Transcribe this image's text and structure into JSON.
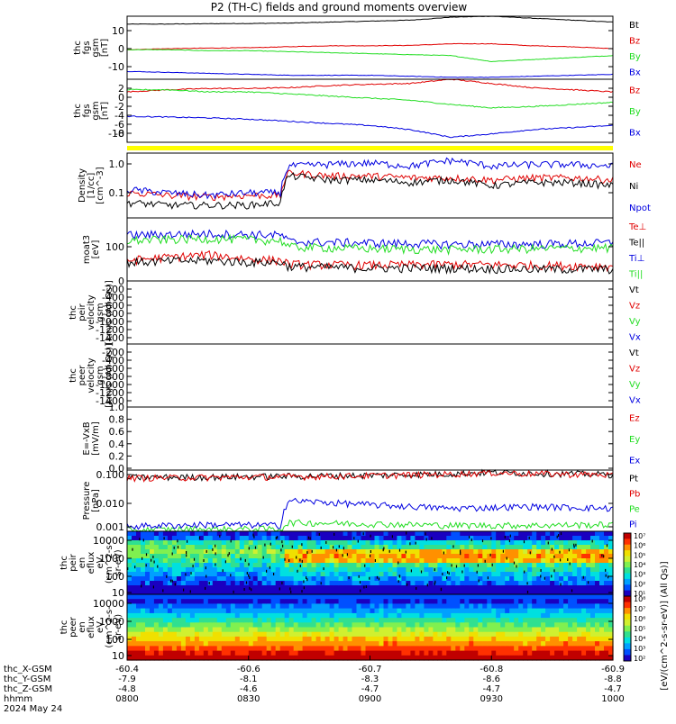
{
  "title": "P2 (TH-C) fields and ground moments overview",
  "colors": {
    "black": "#000000",
    "red": "#e00000",
    "green": "#22dd22",
    "blue": "#0000e0",
    "yellow": "#ffff00"
  },
  "panels": [
    {
      "id": "fgs-bt",
      "ylabel": [
        "thc",
        "fgs",
        "gsm",
        "[nT]"
      ],
      "yticks": [
        "10",
        "0",
        "-10"
      ],
      "legend": [
        {
          "label": "Bt",
          "color": "#000000"
        },
        {
          "label": "Bz",
          "color": "#e00000"
        },
        {
          "label": "By",
          "color": "#22dd22"
        },
        {
          "label": "Bx",
          "color": "#0000e0"
        }
      ]
    },
    {
      "id": "fgs-bzbybx",
      "ylabel": [
        "thc",
        "fgs",
        "gsm",
        "[nT]"
      ],
      "yticks": [
        "2",
        "0",
        "-2",
        "-4",
        "-6",
        "-8",
        "-10"
      ],
      "legend": [
        {
          "label": "Bz",
          "color": "#e00000"
        },
        {
          "label": "By",
          "color": "#22dd22"
        },
        {
          "label": "Bx",
          "color": "#0000e0"
        }
      ]
    },
    {
      "id": "density",
      "ylabel": [
        "Density",
        "[1/cc]",
        "[cm^-3]"
      ],
      "yticks": [
        "1.0",
        "0.1"
      ],
      "legend": [
        {
          "label": "Ne",
          "color": "#e00000"
        },
        {
          "label": "Ni",
          "color": "#000000"
        },
        {
          "label": "Npot",
          "color": "#0000e0"
        }
      ]
    },
    {
      "id": "temperature",
      "ylabel": [
        "moat3",
        "[eV]"
      ],
      "yticks": [
        "100"
      ],
      "legend": [
        {
          "label": "Te⊥",
          "color": "#e00000"
        },
        {
          "label": "Te||",
          "color": "#000000"
        },
        {
          "label": "Ti⊥",
          "color": "#0000e0"
        },
        {
          "label": "Ti||",
          "color": "#22dd22"
        }
      ]
    },
    {
      "id": "peir-velocity",
      "ylabel": [
        "thc",
        "peir",
        "velocity",
        "gsm",
        "[km/s (All Qs)]"
      ],
      "yticks": [
        "0",
        "-200",
        "-400",
        "-600",
        "-800",
        "-1000",
        "-1200",
        "-1400"
      ],
      "legend": [
        {
          "label": "Vt",
          "color": "#000000"
        },
        {
          "label": "Vz",
          "color": "#e00000"
        },
        {
          "label": "Vy",
          "color": "#22dd22"
        },
        {
          "label": "Vx",
          "color": "#0000e0"
        }
      ]
    },
    {
      "id": "peer-velocity",
      "ylabel": [
        "thc",
        "peer",
        "velocity",
        "gsm",
        "[km/s (All Qs)]"
      ],
      "yticks": [
        "-200",
        "-400",
        "-600",
        "-800",
        "-1000",
        "-1200",
        "-1400"
      ],
      "legend": [
        {
          "label": "Vt",
          "color": "#000000"
        },
        {
          "label": "Vz",
          "color": "#e00000"
        },
        {
          "label": "Vy",
          "color": "#22dd22"
        },
        {
          "label": "Vx",
          "color": "#0000e0"
        }
      ]
    },
    {
      "id": "efield",
      "ylabel": [
        "E=-VxB",
        "[mV/m]"
      ],
      "yticks": [
        "1.0",
        "0.8",
        "0.6",
        "0.4",
        "0.2",
        "0.0"
      ],
      "legend": [
        {
          "label": "Ez",
          "color": "#e00000"
        },
        {
          "label": "Ey",
          "color": "#22dd22"
        },
        {
          "label": "Ex",
          "color": "#0000e0"
        }
      ]
    },
    {
      "id": "pressure",
      "ylabel": [
        "Pressure",
        "[nPa]"
      ],
      "yticks": [
        "0.100",
        "0.010",
        "0.001"
      ],
      "legend": [
        {
          "label": "Pt",
          "color": "#000000"
        },
        {
          "label": "Pb",
          "color": "#e00000"
        },
        {
          "label": "Pe",
          "color": "#22dd22"
        },
        {
          "label": "Pi",
          "color": "#0000e0"
        }
      ]
    },
    {
      "id": "peir-spectrogram",
      "ylabel": [
        "thc",
        "peir",
        "en",
        "eflux",
        "eV",
        "(cm^2-s-",
        "sr-eV)"
      ],
      "yticks": [
        "10000",
        "1000",
        "100",
        "10"
      ],
      "legend": []
    },
    {
      "id": "peer-spectrogram",
      "ylabel": [
        "thc",
        "peer",
        "en",
        "eflux",
        "eV",
        "(cm^2-s-",
        "sr-eV)"
      ],
      "yticks": [
        "10000",
        "1000",
        "100",
        "10"
      ],
      "legend": []
    }
  ],
  "colorbar": {
    "label": "[eV/(cm^2-s-sr-eV)] (All Qs)]",
    "ticks_top": [
      "10⁷",
      "10⁶",
      "10⁵",
      "10⁴",
      "10³",
      "10²",
      "10¹"
    ],
    "ticks_bottom": [
      "10⁸",
      "10⁷",
      "10⁶",
      "10⁵",
      "10⁴",
      "10³",
      "10²"
    ]
  },
  "time_axis": {
    "rows": [
      {
        "label": "thc_X-GSM",
        "values": [
          "-60.4",
          "-60.6",
          "-60.7",
          "-60.8",
          "-60.9"
        ]
      },
      {
        "label": "thc_Y-GSM",
        "values": [
          "-7.9",
          "-8.1",
          "-8.3",
          "-8.6",
          "-8.8"
        ]
      },
      {
        "label": "thc_Z-GSM",
        "values": [
          "-4.8",
          "-4.6",
          "-4.7",
          "-4.7",
          "-4.7"
        ]
      },
      {
        "label": "hhmm",
        "values": [
          "0800",
          "0830",
          "0900",
          "0930",
          "1000"
        ]
      }
    ],
    "date": "2024 May 24"
  },
  "chart_data": [
    {
      "type": "line",
      "title": "P2 (TH-C) fields and ground moments overview",
      "ylabel": "thc fgs gsm [nT]",
      "x": [
        "0800",
        "0830",
        "0900",
        "0930",
        "1000"
      ],
      "ylim": [
        -15,
        17
      ],
      "series": [
        {
          "name": "Bt",
          "x": [
            0,
            10,
            20,
            30,
            40,
            50,
            60,
            70,
            80,
            90,
            100,
            110,
            120
          ],
          "values": [
            13,
            13,
            13.2,
            13.3,
            13.5,
            14,
            14.5,
            15,
            16.5,
            17,
            16,
            15,
            14
          ]
        },
        {
          "name": "Bz",
          "x": [
            0,
            10,
            20,
            30,
            40,
            50,
            60,
            70,
            80,
            90,
            100,
            110,
            120
          ],
          "values": [
            0,
            0.5,
            0.8,
            1,
            1.5,
            2,
            2,
            2.2,
            3,
            3,
            2,
            1.5,
            0.5
          ]
        },
        {
          "name": "By",
          "x": [
            0,
            10,
            20,
            30,
            40,
            50,
            60,
            70,
            80,
            90,
            100,
            110,
            120
          ],
          "values": [
            0,
            0,
            -0.5,
            -0.5,
            -1,
            -1.5,
            -2,
            -2.5,
            -3,
            -6,
            -5,
            -4,
            -3
          ]
        },
        {
          "name": "Bx",
          "x": [
            0,
            10,
            20,
            30,
            40,
            50,
            60,
            70,
            80,
            90,
            100,
            110,
            120
          ],
          "values": [
            -11,
            -11.5,
            -12,
            -12.5,
            -13,
            -13,
            -13,
            -13.5,
            -14,
            -14,
            -13.5,
            -13,
            -12.5
          ]
        }
      ]
    },
    {
      "type": "line",
      "ylabel": "thc fgs gsm [nT]",
      "ylim": [
        -12,
        3
      ],
      "series": [
        {
          "name": "Bz",
          "x": [
            0,
            10,
            20,
            30,
            40,
            50,
            60,
            70,
            80,
            90,
            100,
            110,
            120
          ],
          "values": [
            0,
            0.5,
            0.8,
            0.8,
            1,
            1.5,
            1.8,
            2,
            3,
            2,
            1,
            0.5,
            0
          ]
        },
        {
          "name": "By",
          "x": [
            0,
            10,
            20,
            30,
            40,
            50,
            60,
            70,
            80,
            90,
            100,
            110,
            120
          ],
          "values": [
            0.5,
            0.5,
            0,
            0,
            -0.5,
            -1,
            -1.5,
            -2,
            -3,
            -3.8,
            -3.5,
            -3,
            -2.5
          ]
        },
        {
          "name": "Bx",
          "x": [
            0,
            10,
            20,
            30,
            40,
            50,
            60,
            70,
            80,
            90,
            100,
            110,
            120
          ],
          "values": [
            -5.8,
            -6,
            -6.2,
            -6.5,
            -7,
            -7.5,
            -8,
            -9,
            -10.8,
            -10,
            -9,
            -8.5,
            -8
          ]
        }
      ]
    },
    {
      "type": "line",
      "ylabel": "Density [1/cc] [cm^-3]",
      "yscale": "log",
      "ylim": [
        0.02,
        2
      ],
      "series": [
        {
          "name": "Ne",
          "x": [
            0,
            10,
            20,
            30,
            38,
            40,
            50,
            60,
            70,
            80,
            90,
            100,
            110,
            120
          ],
          "values": [
            0.12,
            0.1,
            0.09,
            0.1,
            0.1,
            0.5,
            0.4,
            0.4,
            0.35,
            0.35,
            0.3,
            0.35,
            0.35,
            0.3
          ]
        },
        {
          "name": "Ni",
          "x": [
            0,
            10,
            20,
            30,
            38,
            40,
            50,
            60,
            70,
            80,
            90,
            100,
            110,
            120
          ],
          "values": [
            0.06,
            0.05,
            0.05,
            0.05,
            0.06,
            0.4,
            0.3,
            0.3,
            0.25,
            0.3,
            0.2,
            0.25,
            0.25,
            0.2
          ]
        },
        {
          "name": "Npot",
          "x": [
            0,
            10,
            20,
            30,
            38,
            40,
            50,
            60,
            70,
            80,
            90,
            100,
            110,
            120
          ],
          "values": [
            0.15,
            0.12,
            0.1,
            0.12,
            0.12,
            0.8,
            0.9,
            1.0,
            0.8,
            1.2,
            0.8,
            0.9,
            0.9,
            0.8
          ]
        }
      ]
    },
    {
      "type": "line",
      "ylabel": "moat3 [eV]",
      "yscale": "log",
      "series": [
        {
          "name": "Te⊥",
          "x": [
            0,
            10,
            20,
            30,
            38,
            40,
            60,
            80,
            100,
            120
          ],
          "values": [
            50,
            60,
            70,
            55,
            50,
            40,
            38,
            40,
            38,
            36
          ]
        },
        {
          "name": "Te||",
          "x": [
            0,
            10,
            20,
            30,
            38,
            40,
            60,
            80,
            100,
            120
          ],
          "values": [
            45,
            48,
            50,
            45,
            45,
            35,
            32,
            32,
            30,
            30
          ]
        },
        {
          "name": "Ti⊥",
          "x": [
            0,
            10,
            20,
            30,
            38,
            40,
            60,
            80,
            100,
            120
          ],
          "values": [
            220,
            230,
            240,
            230,
            220,
            150,
            140,
            130,
            130,
            140
          ]
        },
        {
          "name": "Ti||",
          "x": [
            0,
            10,
            20,
            30,
            38,
            40,
            60,
            80,
            100,
            120
          ],
          "values": [
            160,
            170,
            180,
            170,
            160,
            110,
            100,
            95,
            100,
            105
          ]
        }
      ]
    },
    {
      "type": "line",
      "ylabel": "Pressure [nPa]",
      "yscale": "log",
      "ylim": [
        0.001,
        0.12
      ],
      "series": [
        {
          "name": "Pt",
          "x": [
            0,
            20,
            40,
            60,
            80,
            90,
            100,
            120
          ],
          "values": [
            0.068,
            0.07,
            0.075,
            0.08,
            0.09,
            0.1,
            0.095,
            0.085
          ]
        },
        {
          "name": "Pb",
          "x": [
            0,
            20,
            40,
            60,
            80,
            90,
            100,
            120
          ],
          "values": [
            0.065,
            0.068,
            0.072,
            0.078,
            0.088,
            0.098,
            0.092,
            0.082
          ]
        },
        {
          "name": "Pe",
          "x": [
            0,
            20,
            38,
            40,
            60,
            80,
            100,
            120
          ],
          "values": [
            0.0011,
            0.0012,
            0.0012,
            0.002,
            0.0018,
            0.0016,
            0.0016,
            0.0017
          ]
        },
        {
          "name": "Pi",
          "x": [
            0,
            20,
            38,
            40,
            60,
            80,
            100,
            120
          ],
          "values": [
            0.0015,
            0.0017,
            0.0016,
            0.011,
            0.008,
            0.006,
            0.007,
            0.006
          ]
        }
      ]
    },
    {
      "type": "heatmap",
      "ylabel": "thc peir en eflux eV (cm^2-s-sr-eV)",
      "yscale": "log",
      "ylim": [
        10,
        20000
      ]
    },
    {
      "type": "heatmap",
      "ylabel": "thc peer en eflux eV (cm^2-s-sr-eV)",
      "yscale": "log",
      "ylim": [
        10,
        20000
      ]
    }
  ]
}
